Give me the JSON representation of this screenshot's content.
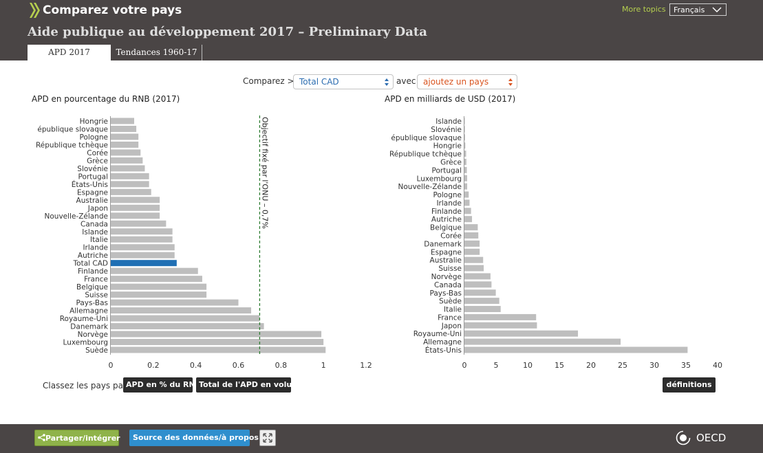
{
  "header": {
    "brand": "Comparez votre pays",
    "more_topics": "More topics",
    "language": "Français",
    "title": "Aide publique au développement 2017 – Preliminary Data",
    "tabs": [
      {
        "label": "APD 2017",
        "active": true
      },
      {
        "label": "Tendances 1960-17",
        "active": false
      }
    ]
  },
  "controls": {
    "compare_label": "Comparez >",
    "select_value": "Total CAD",
    "avec_label": "avec",
    "add_country": "ajoutez un pays"
  },
  "rank": {
    "label": "Classez les pays par",
    "btn_gni": "APD en % du RNB",
    "btn_volume": "Total de l'APD en volume",
    "definitions": "définitions"
  },
  "footer": {
    "share": "Partager/intégrer",
    "source": "Source des données/à propos",
    "oecd": "OECD"
  },
  "colors": {
    "header_bg": "#4a4545",
    "bar": "#bebebe",
    "highlight": "#1f6fb4",
    "target_line": "#2e7d32",
    "accent_green": "#b5cf4f"
  },
  "chart_data": [
    {
      "type": "bar",
      "orientation": "horizontal",
      "title": "APD en pourcentage du RNB (2017)",
      "categories": [
        "Hongrie",
        "épublique slovaque",
        "Pologne",
        "République tchèque",
        "Corée",
        "Grèce",
        "Slovénie",
        "Portugal",
        "États-Unis",
        "Espagne",
        "Australie",
        "Japon",
        "Nouvelle-Zélande",
        "Canada",
        "Islande",
        "Italie",
        "Irlande",
        "Autriche",
        "Total CAD",
        "Finlande",
        "France",
        "Belgique",
        "Suisse",
        "Pays-Bas",
        "Allemagne",
        "Royaume-Uni",
        "Danemark",
        "Norvège",
        "Luxembourg",
        "Suède"
      ],
      "values": [
        0.11,
        0.12,
        0.13,
        0.13,
        0.14,
        0.15,
        0.16,
        0.18,
        0.18,
        0.19,
        0.23,
        0.23,
        0.23,
        0.26,
        0.29,
        0.29,
        0.3,
        0.3,
        0.31,
        0.41,
        0.43,
        0.45,
        0.45,
        0.6,
        0.66,
        0.7,
        0.72,
        0.99,
        1.0,
        1.01
      ],
      "highlight": "Total CAD",
      "xlim": [
        0,
        1.2
      ],
      "xticks": [
        0,
        0.2,
        0.4,
        0.6,
        0.8,
        1,
        1.2
      ],
      "xtick_labels": [
        "0",
        "0.2",
        "0.4",
        "0.6",
        "0.8",
        "1",
        "1.2"
      ],
      "reference_line": {
        "value": 0.7,
        "label": "Objectif fixé par l'ONU – 0,7%"
      }
    },
    {
      "type": "bar",
      "orientation": "horizontal",
      "title": "APD en milliards de USD (2017)",
      "categories": [
        "Islande",
        "Slovénie",
        "épublique slovaque",
        "Hongrie",
        "République tchèque",
        "Grèce",
        "Portugal",
        "Luxembourg",
        "Nouvelle-Zélande",
        "Pologne",
        "Irlande",
        "Finlande",
        "Autriche",
        "Belgique",
        "Corée",
        "Danemark",
        "Espagne",
        "Australie",
        "Suisse",
        "Norvège",
        "Canada",
        "Pays-Bas",
        "Suède",
        "Italie",
        "France",
        "Japon",
        "Royaume-Uni",
        "Allemagne",
        "États-Unis"
      ],
      "values": [
        0.06,
        0.08,
        0.11,
        0.15,
        0.27,
        0.31,
        0.38,
        0.43,
        0.44,
        0.68,
        0.81,
        1.05,
        1.2,
        2.11,
        2.2,
        2.4,
        2.41,
        2.96,
        3.05,
        4.12,
        4.28,
        4.96,
        5.51,
        5.73,
        11.33,
        11.46,
        17.94,
        24.68,
        35.26
      ],
      "xlim": [
        0,
        40
      ],
      "xticks": [
        0,
        5,
        10,
        15,
        20,
        25,
        30,
        35,
        40
      ],
      "xtick_labels": [
        "0",
        "5",
        "10",
        "15",
        "20",
        "25",
        "30",
        "35",
        "40"
      ]
    }
  ]
}
